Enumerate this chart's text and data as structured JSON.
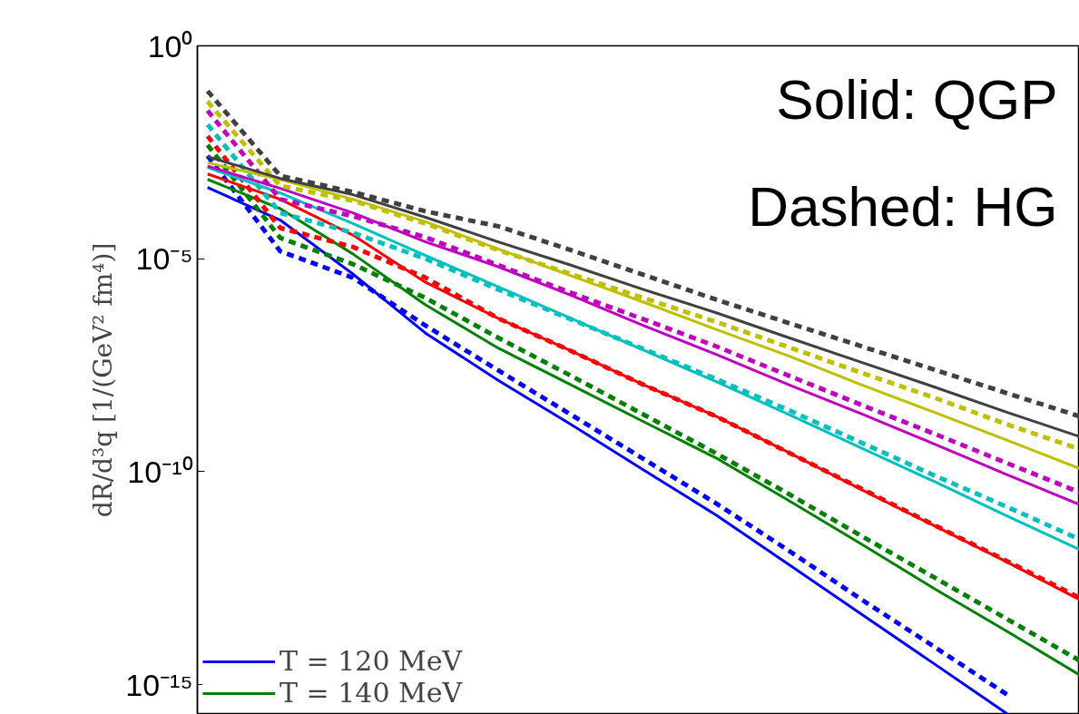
{
  "chart_data": {
    "type": "line",
    "ylabel": "dR/d³q [1/(GeV² fm⁴)]",
    "annotations": [
      "Solid: QGP",
      "Dashed: HG"
    ],
    "categories": [
      null,
      null,
      null,
      null,
      null,
      null,
      null,
      null,
      null,
      null,
      null,
      null,
      null
    ],
    "log": true,
    "ylim": [
      2e-16,
      1
    ],
    "yticks": [
      {
        "value": 1,
        "label": "10⁰"
      },
      {
        "value": 1e-05,
        "label": "10⁻⁵"
      },
      {
        "value": 1e-10,
        "label": "10⁻¹⁰"
      },
      {
        "value": 1e-15,
        "label": "10⁻¹⁵"
      }
    ],
    "tick_labels": "y",
    "grid": false,
    "legend": "bottom left",
    "series": [
      {
        "name": "T = 120 MeV",
        "color": "#0000ff",
        "line_style": "solid",
        "values": [
          0.00047,
          8.1e-05,
          4.4e-06,
          1.8e-07,
          1.4e-08,
          1.3e-09,
          1.1e-10,
          9.6e-12,
          6.6e-13,
          4.5e-14,
          3.1e-15,
          2.1e-16,
          null
        ]
      },
      {
        "color": "#0000ff",
        "line_style": "dashed",
        "values": [
          0.0026,
          1.5e-05,
          3.6e-06,
          2.7e-07,
          2.4e-08,
          2.2e-09,
          2e-10,
          1.8e-11,
          1.4e-12,
          1e-13,
          7.8e-15,
          5.9e-16,
          null
        ]
      },
      {
        "name": "T = 140 MeV",
        "color": "#008000",
        "line_style": "solid",
        "values": [
          0.00073,
          0.00015,
          1.3e-05,
          8.3e-07,
          8e-08,
          1.1e-08,
          1.5e-09,
          2.1e-10,
          2.1e-11,
          2e-12,
          1.8e-13,
          1.8e-14,
          1.7e-15
        ]
      },
      {
        "color": "#008000",
        "line_style": "dashed",
        "values": [
          0.0047,
          3.1e-05,
          7.5e-06,
          1.2e-06,
          1.4e-07,
          1.8e-08,
          2.2e-09,
          2.7e-10,
          3e-11,
          3.1e-12,
          3.3e-13,
          3.5e-14,
          3.7e-15
        ]
      },
      {
        "color": "#ff0000",
        "line_style": "solid",
        "values": [
          0.00098,
          0.00025,
          3.6e-05,
          2.8e-06,
          4e-07,
          6.9e-08,
          1.1e-08,
          2e-09,
          2.8e-10,
          3.8e-11,
          5.4e-12,
          7.6e-13,
          1e-13
        ]
      },
      {
        "color": "#ff0000",
        "line_style": "dashed",
        "values": [
          0.0076,
          5.3e-05,
          1.9e-05,
          3.6e-06,
          4e-07,
          6.9e-08,
          1.1e-08,
          2e-09,
          2.8e-10,
          4e-11,
          5.6e-12,
          8e-13,
          1.1e-13
        ]
      },
      {
        "color": "#00bfbf",
        "line_style": "solid",
        "values": [
          0.0014,
          0.00035,
          6.7e-05,
          1.2e-05,
          2.2e-06,
          4e-07,
          7.2e-08,
          1.3e-08,
          2.2e-09,
          3.6e-10,
          5.9e-11,
          9.2e-12,
          1.5e-12
        ]
      },
      {
        "color": "#00bfbf",
        "line_style": "dashed",
        "values": [
          0.014,
          0.00012,
          4.1e-05,
          1e-05,
          1.9e-06,
          3.8e-07,
          7.6e-08,
          1.5e-08,
          2.8e-09,
          4.8e-10,
          8.2e-11,
          1.5e-11,
          2.6e-12
        ]
      },
      {
        "color": "#bf00bf",
        "line_style": "solid",
        "values": [
          0.0015,
          0.00045,
          0.00012,
          2.5e-05,
          6.5e-06,
          1.4e-06,
          2.7e-07,
          5.7e-08,
          1.1e-08,
          2.3e-09,
          4.5e-10,
          8.6e-11,
          1.7e-11
        ]
      },
      {
        "color": "#bf00bf",
        "line_style": "dashed",
        "values": [
          0.03,
          0.00025,
          0.0001,
          3.2e-05,
          7.1e-06,
          1.6e-06,
          3.8e-07,
          8.8e-08,
          1.8e-08,
          3.7e-09,
          7.8e-10,
          1.6e-10,
          3.3e-11
        ]
      },
      {
        "color": "#bfbf00",
        "line_style": "solid",
        "values": [
          0.0018,
          0.00073,
          0.00025,
          7.4e-05,
          1.7e-05,
          4e-06,
          9.6e-07,
          2.2e-07,
          5.2e-08,
          1.1e-08,
          2.5e-09,
          5.5e-10,
          1.2e-10
        ]
      },
      {
        "color": "#bfbf00",
        "line_style": "dashed",
        "values": [
          0.049,
          0.00052,
          0.00023,
          6.7e-05,
          1.6e-05,
          4.4e-06,
          1.2e-06,
          3.3e-07,
          8.4e-08,
          2.1e-08,
          5.5e-09,
          1.3e-09,
          3.4e-10
        ]
      },
      {
        "color": "#404040",
        "line_style": "solid",
        "values": [
          0.0025,
          0.00077,
          0.00032,
          9.4e-05,
          2.5e-05,
          7.1e-06,
          1.9e-06,
          5.4e-07,
          1.4e-07,
          3.7e-08,
          9.8e-09,
          2.5e-09,
          6.7e-10
        ]
      },
      {
        "color": "#404040",
        "line_style": "dashed",
        "values": [
          0.087,
          0.00089,
          0.00037,
          0.00013,
          5.8e-05,
          1.6e-05,
          4.2e-06,
          1.1e-06,
          3.1e-07,
          8.8e-08,
          2.5e-08,
          7e-09,
          2e-09
        ]
      }
    ]
  }
}
